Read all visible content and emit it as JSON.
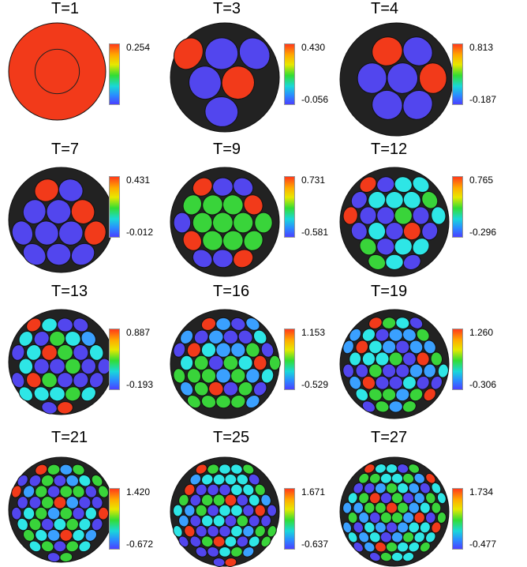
{
  "colors": {
    "red": "#f23a1a",
    "blue": "#5246ee",
    "green": "#39d43a",
    "cyan": "#2ee6e6",
    "lightblue": "#3aa0ff",
    "outline": "#111111"
  },
  "panels": [
    {
      "title": "T=1",
      "max": "0.254",
      "min": "",
      "scheme": "red"
    },
    {
      "title": "T=3",
      "max": "0.430",
      "min": "-0.056",
      "scheme": "blue-red"
    },
    {
      "title": "T=4",
      "max": "0.813",
      "min": "-0.187",
      "scheme": "blue-red"
    },
    {
      "title": "T=7",
      "max": "0.431",
      "min": "-0.012",
      "scheme": "blue-red"
    },
    {
      "title": "T=9",
      "max": "0.731",
      "min": "-0.581",
      "scheme": "green"
    },
    {
      "title": "T=12",
      "max": "0.765",
      "min": "-0.296",
      "scheme": "cyan"
    },
    {
      "title": "T=13",
      "max": "0.887",
      "min": "-0.193",
      "scheme": "mixed"
    },
    {
      "title": "T=16",
      "max": "1.153",
      "min": "-0.529",
      "scheme": "mixed"
    },
    {
      "title": "T=19",
      "max": "1.260",
      "min": "-0.306",
      "scheme": "mixed"
    },
    {
      "title": "T=21",
      "max": "1.420",
      "min": "-0.672",
      "scheme": "mixed"
    },
    {
      "title": "T=25",
      "max": "1.671",
      "min": "-0.637",
      "scheme": "mixed"
    },
    {
      "title": "T=27",
      "max": "1.734",
      "min": "-0.477",
      "scheme": "mixed"
    }
  ]
}
